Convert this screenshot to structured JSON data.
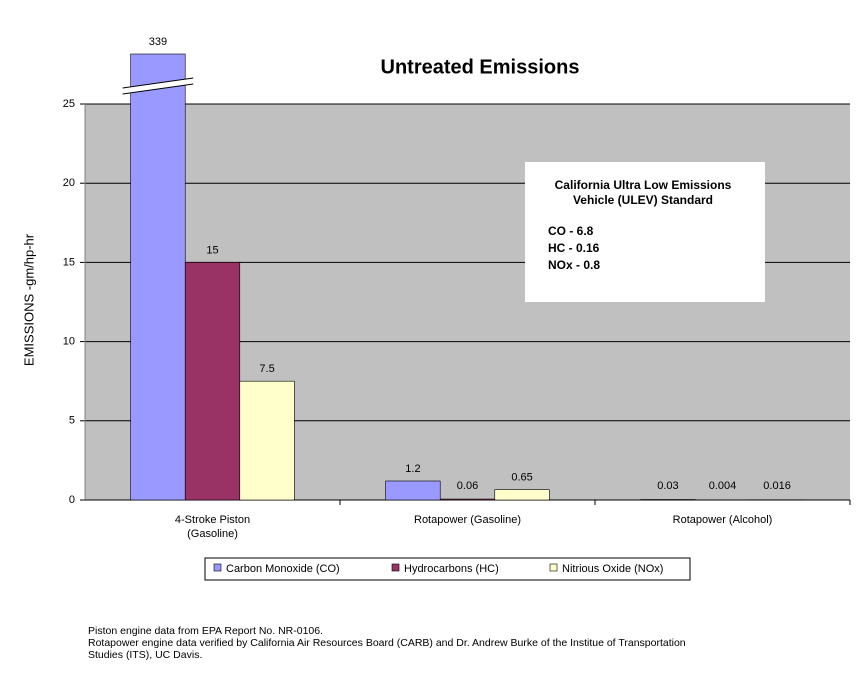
{
  "chart_data": {
    "type": "bar",
    "title": "Untreated Emissions",
    "y_label": "EMISSIONS -gm/hp-hr",
    "categories": [
      "4-Stroke Piston\n(Gasoline)",
      "Rotapower (Gasoline)",
      "Rotapower (Alcohol)"
    ],
    "series": [
      {
        "name": "Carbon Monoxide (CO)",
        "color": "#9999ff",
        "values": [
          339,
          1.2,
          0.03
        ]
      },
      {
        "name": "Hydrocarbons (HC)",
        "color": "#993366",
        "values": [
          15,
          0.06,
          0.004
        ]
      },
      {
        "name": "Nitrious Oxide (NOx)",
        "color": "#ffffcc",
        "values": [
          7.5,
          0.65,
          0.016
        ]
      }
    ],
    "ylim": [
      0,
      25
    ],
    "yticks": [
      0,
      5,
      10,
      15,
      20,
      25
    ],
    "grid": true,
    "axis_break": true,
    "legend": "bottom",
    "annotation": {
      "title": "California Ultra Low Emissions\nVehicle (ULEV) Standard",
      "lines": [
        "CO -  6.8",
        "HC -  0.16",
        "NOx - 0.8"
      ]
    },
    "notes": [
      "Piston engine data from EPA Report No. NR-0106.",
      "Rotapower engine data verified by California Air Resources Board (CARB) and Dr. Andrew Burke of the Institue of Transportation",
      "Studies (ITS), UC Davis."
    ]
  }
}
